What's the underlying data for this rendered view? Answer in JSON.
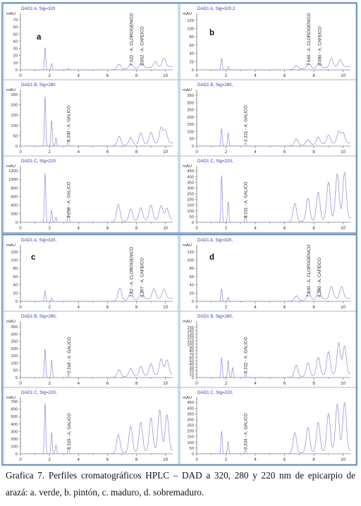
{
  "figure": {
    "quadrants": [
      {
        "letter": "a",
        "panels": [
          {
            "header": "DAD1 A, Sig=320",
            "unit": "mAU",
            "ylim": [
              0,
              75
            ],
            "yticks": [
              0,
              10,
              20,
              30,
              40,
              50,
              60,
              70
            ],
            "peaks": [
              [
                1.7,
                31
              ],
              [
                2.15,
                9
              ],
              [
                3.3,
                2
              ],
              [
                6.8,
                7
              ],
              [
                7.6,
                6
              ],
              [
                8.35,
                9
              ],
              [
                9.3,
                8
              ],
              [
                9.9,
                12
              ]
            ],
            "annotations": [
              "7.622 - A. CLOROGENICO",
              "8.362 - A. CAFEICO"
            ]
          },
          {
            "header": "DAD1 B, Sig=280",
            "unit": "mAU",
            "ylim": [
              0,
              260
            ],
            "yticks": [
              0,
              50,
              100,
              150,
              200,
              250
            ],
            "peaks": [
              [
                1.7,
                240
              ],
              [
                2.15,
                125
              ],
              [
                2.45,
                40
              ],
              [
                3.3,
                30
              ],
              [
                6.8,
                45
              ],
              [
                7.6,
                35
              ],
              [
                8.3,
                55
              ],
              [
                9.0,
                55
              ],
              [
                9.7,
                75
              ],
              [
                10.0,
                60
              ]
            ],
            "annotations": [
              "3.300 - A. GALICO"
            ]
          },
          {
            "header": "DAD1 C, Sig=220",
            "unit": "mAU",
            "ylim": [
              0,
              1250
            ],
            "yticks": [
              0,
              200,
              400,
              600,
              800,
              1000,
              1200
            ],
            "peaks": [
              [
                1.7,
                1150
              ],
              [
                2.15,
                280
              ],
              [
                2.45,
                120
              ],
              [
                3.3,
                200
              ],
              [
                6.75,
                400
              ],
              [
                7.6,
                280
              ],
              [
                8.3,
                300
              ],
              [
                9.0,
                340
              ],
              [
                9.7,
                320
              ],
              [
                10.1,
                250
              ]
            ],
            "annotations": [
              "3.298 - A. GALICO"
            ]
          }
        ]
      },
      {
        "letter": "b",
        "panels": [
          {
            "header": "DAD1 A, Sig=320,2",
            "unit": "mAU",
            "ylim": [
              0,
              130
            ],
            "yticks": [
              0,
              20,
              40,
              60,
              80,
              100,
              120
            ],
            "peaks": [
              [
                1.7,
                28
              ],
              [
                2.15,
                8
              ],
              [
                6.8,
                9
              ],
              [
                7.65,
                12
              ],
              [
                8.35,
                14
              ],
              [
                9.2,
                22
              ],
              [
                9.8,
                18
              ]
            ],
            "annotations": [
              "7.640 - A. CLOROGENICO",
              "8.380 - A. CAFEICO"
            ]
          },
          {
            "header": "DAD1 B, Sig=280,",
            "unit": "mAU",
            "ylim": [
              0,
              370
            ],
            "yticks": [
              0,
              50,
              100,
              150,
              200,
              250,
              300,
              350
            ],
            "peaks": [
              [
                1.7,
                120
              ],
              [
                2.15,
                90
              ],
              [
                3.33,
                25
              ],
              [
                6.8,
                45
              ],
              [
                7.6,
                35
              ],
              [
                8.3,
                50
              ],
              [
                9.0,
                60
              ],
              [
                9.7,
                80
              ],
              [
                10.0,
                70
              ]
            ],
            "annotations": [
              "3.331 - A. GALICO"
            ]
          },
          {
            "header": "DAD1 C, Sig=220,",
            "unit": "mAU",
            "ylim": [
              0,
              470
            ],
            "yticks": [
              0,
              50,
              100,
              150,
              200,
              250,
              300,
              350,
              400,
              450
            ],
            "peaks": [
              [
                1.7,
                410
              ],
              [
                2.15,
                180
              ],
              [
                3.33,
                60
              ],
              [
                6.7,
                160
              ],
              [
                7.6,
                200
              ],
              [
                8.3,
                250
              ],
              [
                9.0,
                330
              ],
              [
                9.6,
                400
              ],
              [
                10.1,
                410
              ]
            ],
            "annotations": [
              "3.331 - A. GALICO"
            ]
          }
        ]
      },
      {
        "letter": "c",
        "panels": [
          {
            "header": "DAD1 A, Sig=320,",
            "unit": "mAU",
            "ylim": [
              0,
              130
            ],
            "yticks": [
              0,
              20,
              40,
              60,
              80,
              100,
              120
            ],
            "peaks": [
              [
                1.7,
                25
              ],
              [
                2.15,
                8
              ],
              [
                6.85,
                30
              ],
              [
                7.6,
                20
              ],
              [
                8.35,
                22
              ],
              [
                9.2,
                25
              ],
              [
                9.9,
                22
              ]
            ],
            "annotations": [
              "7.62 - A. CLOROGENICO",
              "8.357 - A. CAFEICO"
            ]
          },
          {
            "header": "DAD1 B, Sig=280,",
            "unit": "mAU",
            "ylim": [
              0,
              370
            ],
            "yticks": [
              0,
              50,
              100,
              150,
              200,
              250,
              300,
              350
            ],
            "peaks": [
              [
                1.7,
                200
              ],
              [
                2.15,
                120
              ],
              [
                3.32,
                30
              ],
              [
                6.8,
                50
              ],
              [
                7.6,
                55
              ],
              [
                8.3,
                65
              ],
              [
                9.0,
                80
              ],
              [
                9.7,
                110
              ],
              [
                10.1,
                100
              ]
            ],
            "annotations": [
              "3.318 - A. GALICO"
            ]
          },
          {
            "header": "DAD1 C, Sig=220,",
            "unit": "mAU",
            "ylim": [
              0,
              720
            ],
            "yticks": [
              0,
              100,
              200,
              300,
              400,
              500,
              600,
              700
            ],
            "peaks": [
              [
                1.7,
                680
              ],
              [
                2.15,
                290
              ],
              [
                2.45,
                120
              ],
              [
                3.32,
                80
              ],
              [
                6.75,
                250
              ],
              [
                7.6,
                350
              ],
              [
                8.3,
                400
              ],
              [
                9.0,
                450
              ],
              [
                9.6,
                550
              ],
              [
                10.1,
                480
              ]
            ],
            "annotations": [
              "3.319 - A. GALICO"
            ]
          }
        ]
      },
      {
        "letter": "d",
        "panels": [
          {
            "header": "DAD1 A, Sig=320,",
            "unit": "mAU",
            "ylim": [
              0,
              130
            ],
            "yticks": [
              0,
              20,
              40,
              60,
              80,
              100,
              120
            ],
            "peaks": [
              [
                1.7,
                30
              ],
              [
                2.15,
                10
              ],
              [
                6.8,
                12
              ],
              [
                7.65,
                20
              ],
              [
                8.35,
                25
              ],
              [
                9.2,
                30
              ],
              [
                9.9,
                28
              ]
            ],
            "annotations": [
              "7.630 - A. CLOROGENICO",
              "8.350 - A. CAFEICO"
            ]
          },
          {
            "header": "DAD1 B, Sig=280,",
            "unit": "mAU",
            "ylim": [
              0,
              160
            ],
            "yticks": [
              0,
              10,
              20,
              30,
              40,
              50,
              60,
              70,
              80,
              90,
              100,
              110,
              120,
              130,
              140,
              150
            ],
            "peaks": [
              [
                1.7,
                60
              ],
              [
                2.15,
                50
              ],
              [
                2.45,
                30
              ],
              [
                3.33,
                15
              ],
              [
                6.8,
                35
              ],
              [
                7.6,
                40
              ],
              [
                8.3,
                55
              ],
              [
                9.0,
                70
              ],
              [
                9.7,
                95
              ],
              [
                10.1,
                85
              ]
            ],
            "annotations": [
              "3.332 - A. GALICO"
            ]
          },
          {
            "header": "DAD1 C, Sig=220,",
            "unit": "mAU",
            "ylim": [
              0,
              470
            ],
            "yticks": [
              0,
              50,
              100,
              150,
              200,
              250,
              300,
              350,
              400,
              450
            ],
            "peaks": [
              [
                1.7,
                200
              ],
              [
                2.15,
                110
              ],
              [
                3.33,
                40
              ],
              [
                6.7,
                180
              ],
              [
                7.6,
                220
              ],
              [
                8.3,
                260
              ],
              [
                9.0,
                330
              ],
              [
                9.6,
                410
              ],
              [
                10.1,
                420
              ]
            ],
            "annotations": [
              "3.334 - A. GALICO"
            ]
          }
        ]
      }
    ],
    "xlim": [
      0,
      10.5
    ],
    "xticks": [
      0,
      2,
      4,
      6,
      8,
      10
    ],
    "colors": {
      "trace": "#8c8cd6",
      "header": "#3a3ab0",
      "annotation": "#2a2a2a",
      "axis": "#444444",
      "frame": "#7fa0c8",
      "outer_frame": "#3d6fb0"
    }
  },
  "chart_data": {
    "type": "line",
    "title": "",
    "xlabel": "",
    "ylabel": "mAU",
    "xlim": [
      0,
      10.5
    ],
    "note": "12 HPLC-DAD chromatograms; peak apex values read off the axes are listed per panel in figure.quadrants[].panels[].peaks as [retention time, mAU]."
  },
  "caption": {
    "line1": "Grafica 7. Perfiles cromatográficos HPLC – DAD a 320, 280 y 220 nm de epicarpio de",
    "line2": "arazá: a. verde, b. pintón, c. maduro, d. sobremaduro."
  }
}
